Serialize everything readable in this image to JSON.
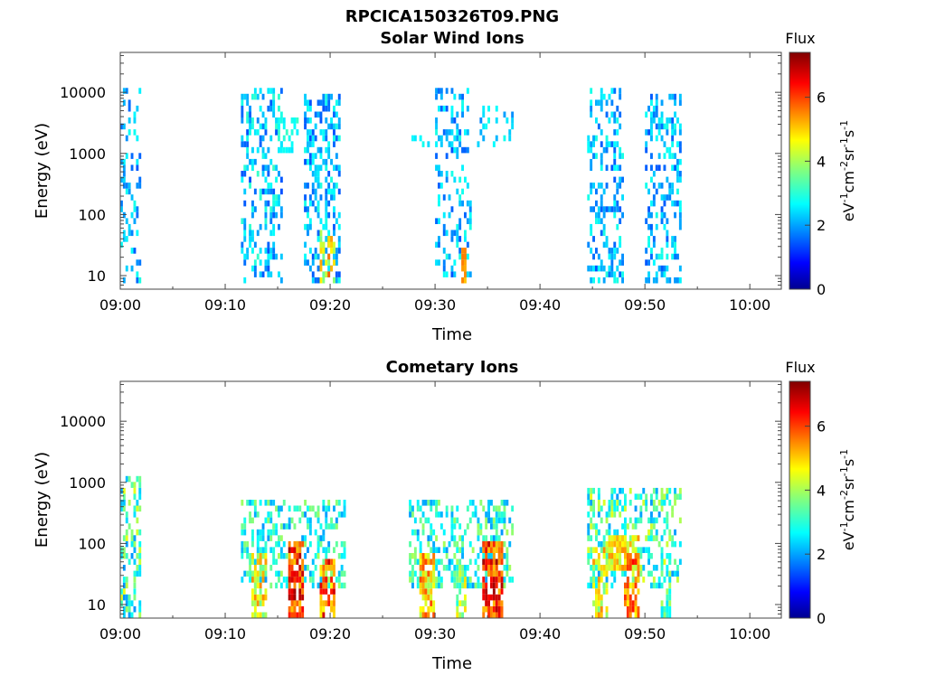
{
  "figure": {
    "title": "RPCICA150326T09.PNG"
  },
  "colorbar": {
    "label": "Flux",
    "units": "eV-1cm-2sr-1s-1",
    "range": [
      0,
      7.4
    ],
    "ticks": [
      "0",
      "2",
      "4",
      "6"
    ],
    "colormap": "jet"
  },
  "chart_data": [
    {
      "type": "heatmap",
      "title": "Solar Wind Ions",
      "xlabel": "Time",
      "ylabel": "Energy (eV)",
      "yscale": "log",
      "ylim": [
        6,
        45000
      ],
      "xlim_minutes": [
        0,
        63
      ],
      "x_ticks": [
        "09:00",
        "09:10",
        "09:20",
        "09:30",
        "09:40",
        "09:50",
        "10:00"
      ],
      "y_ticks": [
        "10",
        "100",
        "1000",
        "10000"
      ],
      "bursts": [
        {
          "t": [
            0.0,
            2.0
          ],
          "e": [
            8,
            10000
          ],
          "flux": [
            1.5,
            3.0
          ],
          "density": 0.3
        },
        {
          "t": [
            11.5,
            15.5
          ],
          "e": [
            8,
            10000
          ],
          "flux": [
            1.5,
            3.2
          ],
          "density": 0.35
        },
        {
          "t": [
            15.0,
            17.0
          ],
          "e": [
            1200,
            3500
          ],
          "flux": [
            2.5,
            3.2
          ],
          "density": 0.45
        },
        {
          "t": [
            17.5,
            21.0
          ],
          "e": [
            8,
            9000
          ],
          "flux": [
            1.5,
            3.0
          ],
          "density": 0.4
        },
        {
          "t": [
            19.0,
            20.5
          ],
          "e": [
            8,
            50
          ],
          "flux": [
            3.5,
            6.0
          ],
          "density": 0.55
        },
        {
          "t": [
            27.5,
            29.5
          ],
          "e": [
            1200,
            2000
          ],
          "flux": [
            2.5,
            3.0
          ],
          "density": 0.25
        },
        {
          "t": [
            30.0,
            33.5
          ],
          "e": [
            10,
            10000
          ],
          "flux": [
            1.5,
            3.0
          ],
          "density": 0.3
        },
        {
          "t": [
            32.5,
            33.0
          ],
          "e": [
            8,
            25
          ],
          "flux": [
            5.0,
            5.6
          ],
          "density": 0.8
        },
        {
          "t": [
            34.0,
            37.5
          ],
          "e": [
            1500,
            6000
          ],
          "flux": [
            1.8,
            3.0
          ],
          "density": 0.25
        },
        {
          "t": [
            44.5,
            48.0
          ],
          "e": [
            8,
            10000
          ],
          "flux": [
            1.5,
            3.0
          ],
          "density": 0.35
        },
        {
          "t": [
            50.0,
            53.5
          ],
          "e": [
            8,
            9000
          ],
          "flux": [
            1.5,
            3.0
          ],
          "density": 0.35
        }
      ]
    },
    {
      "type": "heatmap",
      "title": "Cometary Ions",
      "xlabel": "Time",
      "ylabel": "Energy (eV)",
      "yscale": "log",
      "ylim": [
        6,
        45000
      ],
      "xlim_minutes": [
        0,
        63
      ],
      "x_ticks": [
        "09:00",
        "09:10",
        "09:20",
        "09:30",
        "09:40",
        "09:50",
        "10:00"
      ],
      "y_ticks": [
        "10",
        "100",
        "1000",
        "10000"
      ],
      "bursts": [
        {
          "t": [
            0.0,
            2.0
          ],
          "e": [
            7,
            1200
          ],
          "flux": [
            2.0,
            4.5
          ],
          "density": 0.45
        },
        {
          "t": [
            11.5,
            21.5
          ],
          "e": [
            20,
            500
          ],
          "flux": [
            2.0,
            4.0
          ],
          "density": 0.4
        },
        {
          "t": [
            12.5,
            14.0
          ],
          "e": [
            7,
            60
          ],
          "flux": [
            3.5,
            5.5
          ],
          "density": 0.7
        },
        {
          "t": [
            16.0,
            17.5
          ],
          "e": [
            7,
            90
          ],
          "flux": [
            5.0,
            7.2
          ],
          "density": 0.8
        },
        {
          "t": [
            19.0,
            20.5
          ],
          "e": [
            7,
            50
          ],
          "flux": [
            4.5,
            7.0
          ],
          "density": 0.75
        },
        {
          "t": [
            27.5,
            37.5
          ],
          "e": [
            20,
            500
          ],
          "flux": [
            2.0,
            4.0
          ],
          "density": 0.4
        },
        {
          "t": [
            28.5,
            30.0
          ],
          "e": [
            7,
            60
          ],
          "flux": [
            4.0,
            6.0
          ],
          "density": 0.7
        },
        {
          "t": [
            32.0,
            33.0
          ],
          "e": [
            7,
            40
          ],
          "flux": [
            3.0,
            5.0
          ],
          "density": 0.6
        },
        {
          "t": [
            34.5,
            36.5
          ],
          "e": [
            7,
            100
          ],
          "flux": [
            5.0,
            7.2
          ],
          "density": 0.8
        },
        {
          "t": [
            44.5,
            53.5
          ],
          "e": [
            20,
            700
          ],
          "flux": [
            2.0,
            4.5
          ],
          "density": 0.4
        },
        {
          "t": [
            45.0,
            46.5
          ],
          "e": [
            7,
            80
          ],
          "flux": [
            3.5,
            5.5
          ],
          "density": 0.65
        },
        {
          "t": [
            46.5,
            49.5
          ],
          "e": [
            40,
            130
          ],
          "flux": [
            4.0,
            5.5
          ],
          "density": 0.8
        },
        {
          "t": [
            48.0,
            49.5
          ],
          "e": [
            7,
            60
          ],
          "flux": [
            4.5,
            6.5
          ],
          "density": 0.75
        },
        {
          "t": [
            51.5,
            52.5
          ],
          "e": [
            7,
            60
          ],
          "flux": [
            2.5,
            4.0
          ],
          "density": 0.6
        }
      ]
    }
  ]
}
